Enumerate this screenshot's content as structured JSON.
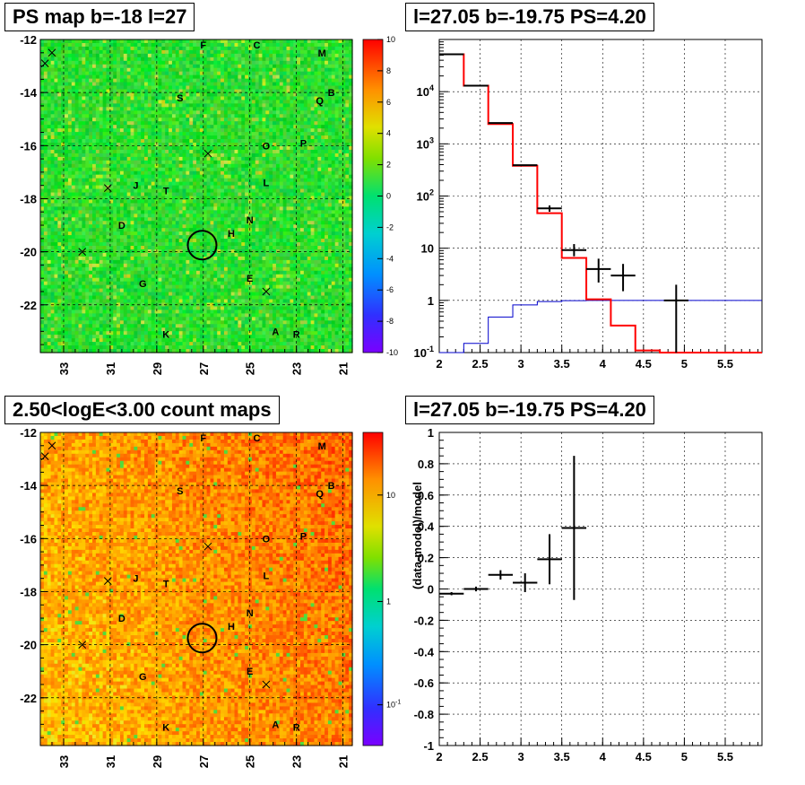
{
  "panels": {
    "tl_title": "PS map b=-18 l=27",
    "tr_title": "l=27.05 b=-19.75 PS=4.20",
    "bl_title": "2.50<logE<3.00 count maps",
    "br_title": "l=27.05 b=-19.75 PS=4.20"
  },
  "maps": {
    "x_ticks": [
      "33",
      "31",
      "29",
      "27",
      "25",
      "23",
      "21"
    ],
    "y_ticks": [
      "-12",
      "-14",
      "-16",
      "-18",
      "-20",
      "-22"
    ],
    "x_range": [
      34,
      20.6
    ],
    "y_range": [
      -23.8,
      -12
    ],
    "source_labels": [
      {
        "t": "F",
        "l": 27.0,
        "b": -12.2
      },
      {
        "t": "C",
        "l": 24.7,
        "b": -12.2
      },
      {
        "t": "M",
        "l": 21.9,
        "b": -12.5
      },
      {
        "t": "B",
        "l": 21.5,
        "b": -14.0
      },
      {
        "t": "Q",
        "l": 22.0,
        "b": -14.3
      },
      {
        "t": "S",
        "l": 28.0,
        "b": -14.2
      },
      {
        "t": "O",
        "l": 24.3,
        "b": -16.0
      },
      {
        "t": "P",
        "l": 22.7,
        "b": -15.9
      },
      {
        "t": "J",
        "l": 29.9,
        "b": -17.5
      },
      {
        "t": "T",
        "l": 28.6,
        "b": -17.7
      },
      {
        "t": "L",
        "l": 24.3,
        "b": -17.4
      },
      {
        "t": "D",
        "l": 30.5,
        "b": -19.0
      },
      {
        "t": "N",
        "l": 25.0,
        "b": -18.8
      },
      {
        "t": "H",
        "l": 25.8,
        "b": -19.3
      },
      {
        "t": "G",
        "l": 29.6,
        "b": -21.2
      },
      {
        "t": "E",
        "l": 25.0,
        "b": -21.0
      },
      {
        "t": "K",
        "l": 28.6,
        "b": -23.1
      },
      {
        "t": "A",
        "l": 23.9,
        "b": -23.0
      },
      {
        "t": "R",
        "l": 23.0,
        "b": -23.1
      }
    ],
    "crosses": [
      {
        "l": 33.8,
        "b": -12.9
      },
      {
        "l": 33.5,
        "b": -12.5
      },
      {
        "l": 26.8,
        "b": -16.3
      },
      {
        "l": 31.1,
        "b": -17.6
      },
      {
        "l": 32.2,
        "b": -20.0
      },
      {
        "l": 24.3,
        "b": -21.5
      }
    ],
    "circle": {
      "l": 27.05,
      "b": -19.75
    },
    "tl_colorbar": {
      "ticks": [
        "10",
        "8",
        "6",
        "4",
        "2",
        "0",
        "-2",
        "-4",
        "-6",
        "-8",
        "-10"
      ],
      "range": [
        -10,
        10
      ]
    },
    "bl_colorbar": {
      "ticks": [
        "10",
        "1",
        "10-1"
      ],
      "ticks_display": [
        {
          "t": "10",
          "v": 10
        },
        {
          "t": "1",
          "v": 1
        },
        {
          "t": "10",
          "sup": "-1",
          "v": 0.1
        }
      ]
    }
  },
  "chart_data": [
    {
      "type": "line",
      "title": "l=27.05 b=-19.75 PS=4.20",
      "xlabel": "",
      "ylabel": "",
      "xlim": [
        2,
        5.95
      ],
      "ylim": [
        0.1,
        100000
      ],
      "yscale": "log",
      "x_ticks": [
        "2",
        "2.5",
        "3",
        "3.5",
        "4",
        "4.5",
        "5",
        "5.5"
      ],
      "y_ticks": [
        {
          "t": "10",
          "sup": "-1",
          "v": 0.1
        },
        {
          "t": "1",
          "v": 1
        },
        {
          "t": "10",
          "v": 10
        },
        {
          "t": "10",
          "sup": "2",
          "v": 100
        },
        {
          "t": "10",
          "sup": "3",
          "v": 1000
        },
        {
          "t": "10",
          "sup": "4",
          "v": 10000
        }
      ],
      "bin_edges": [
        2.0,
        2.3,
        2.6,
        2.9,
        3.2,
        3.5,
        3.8,
        4.1,
        4.4,
        4.7,
        5.0,
        5.3,
        5.6,
        5.95
      ],
      "series": [
        {
          "role": "data",
          "color": "#000000",
          "points": [
            {
              "x": 2.15,
              "y": 52000
            },
            {
              "x": 2.45,
              "y": 13000
            },
            {
              "x": 2.75,
              "y": 2500
            },
            {
              "x": 3.05,
              "y": 390
            },
            {
              "x": 3.35,
              "y": 58,
              "ylo": 50,
              "yhi": 66
            },
            {
              "x": 3.65,
              "y": 9.2,
              "ylo": 7,
              "yhi": 12
            },
            {
              "x": 3.95,
              "y": 4.0,
              "ylo": 2.2,
              "yhi": 6.3
            },
            {
              "x": 4.25,
              "y": 3.0,
              "ylo": 1.5,
              "yhi": 5.0
            },
            {
              "x": 4.9,
              "y": 1.0,
              "ylo": 0.1,
              "yhi": 2.0
            }
          ]
        },
        {
          "role": "model",
          "color": "#ff0000",
          "values": [
            52000,
            13000,
            2400,
            380,
            47,
            6.5,
            1.05,
            0.33,
            0.11,
            0.1,
            0.1,
            0.1,
            0.1
          ]
        },
        {
          "role": "point-source",
          "color": "#0000cc",
          "values": [
            0.1,
            0.15,
            0.48,
            0.82,
            0.95,
            0.99,
            1.0,
            1.0,
            1.0,
            1.0,
            1.0,
            1.0,
            1.0
          ]
        }
      ]
    },
    {
      "type": "scatter",
      "title": "l=27.05 b=-19.75 PS=4.20",
      "xlabel": "",
      "ylabel": "(data-model)/model",
      "xlim": [
        2,
        5.95
      ],
      "ylim": [
        -1,
        1
      ],
      "x_ticks": [
        "2",
        "2.5",
        "3",
        "3.5",
        "4",
        "4.5",
        "5",
        "5.5"
      ],
      "y_ticks": [
        "-1",
        "-0.8",
        "-0.6",
        "-0.4",
        "-0.2",
        "0",
        "0.2",
        "0.4",
        "0.6",
        "0.8",
        "1"
      ],
      "points": [
        {
          "x": 2.15,
          "y": -0.03,
          "xerr": 0.15,
          "yerr": 0.01
        },
        {
          "x": 2.45,
          "y": 0.0,
          "xerr": 0.15,
          "yerr": 0.015
        },
        {
          "x": 2.75,
          "y": 0.09,
          "xerr": 0.15,
          "yerr": 0.03
        },
        {
          "x": 3.05,
          "y": 0.04,
          "xerr": 0.15,
          "yerr": 0.06
        },
        {
          "x": 3.35,
          "y": 0.19,
          "xerr": 0.15,
          "yerr": 0.16
        },
        {
          "x": 3.65,
          "y": 0.39,
          "xerr": 0.15,
          "yerr": 0.46
        }
      ]
    }
  ]
}
